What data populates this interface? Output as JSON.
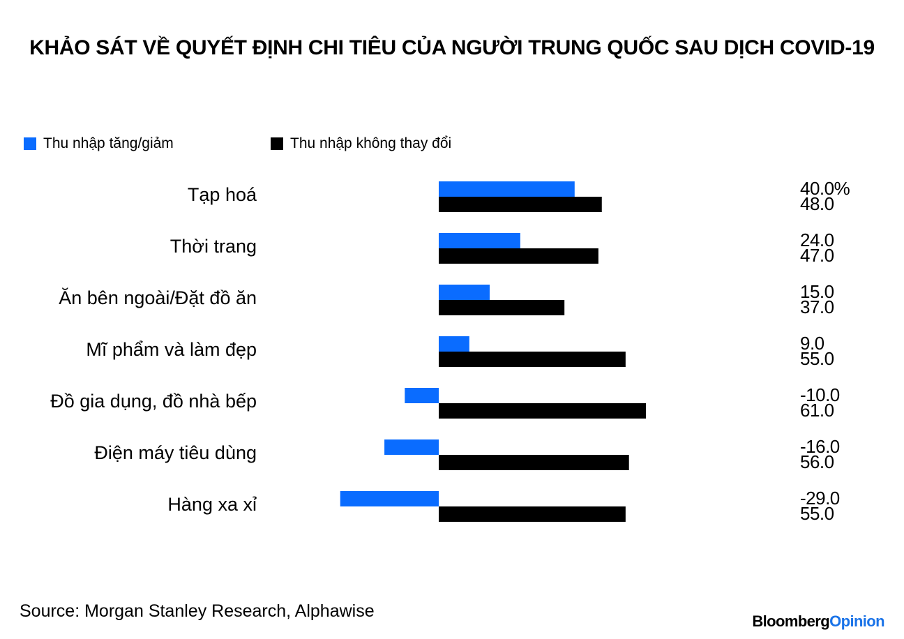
{
  "colors": {
    "series_0": "#0a6cff",
    "series_1": "#000000",
    "brand_accent": "#1a73e8"
  },
  "footer": {
    "source": "Source: Morgan Stanley Research, Alphawise",
    "brand_part1": "Bloomberg",
    "brand_part2": "Opinion"
  },
  "chart_data": {
    "type": "bar",
    "orientation": "horizontal",
    "title": "KHẢO SÁT VỀ QUYẾT ĐỊNH CHI TIÊU CỦA NGƯỜI TRUNG QUỐC SAU DỊCH COVID-19",
    "xlabel": "",
    "ylabel": "",
    "grid": false,
    "legend_position": "top-left",
    "xlim": [
      -32,
      70
    ],
    "categories": [
      "Tạp hoá",
      "Thời trang",
      "Ăn bên ngoài/Đặt đồ ăn",
      "Mĩ phẩm và làm đẹp",
      "Đồ gia dụng, đồ nhà bếp",
      "Điện máy tiêu dùng",
      "Hàng xa xỉ"
    ],
    "series": [
      {
        "name": "Thu nhập tăng/giảm",
        "values": [
          40,
          24,
          15,
          9,
          -10,
          -16,
          -29
        ],
        "labels": [
          "40.0%",
          "24.0",
          "15.0",
          "9.0",
          "-10.0",
          "-16.0",
          "-29.0"
        ]
      },
      {
        "name": "Thu nhập không thay đổi",
        "values": [
          48,
          47,
          37,
          55,
          61,
          56,
          55
        ],
        "labels": [
          "48.0",
          "47.0",
          "37.0",
          "55.0",
          "61.0",
          "56.0",
          "55.0"
        ]
      }
    ]
  }
}
